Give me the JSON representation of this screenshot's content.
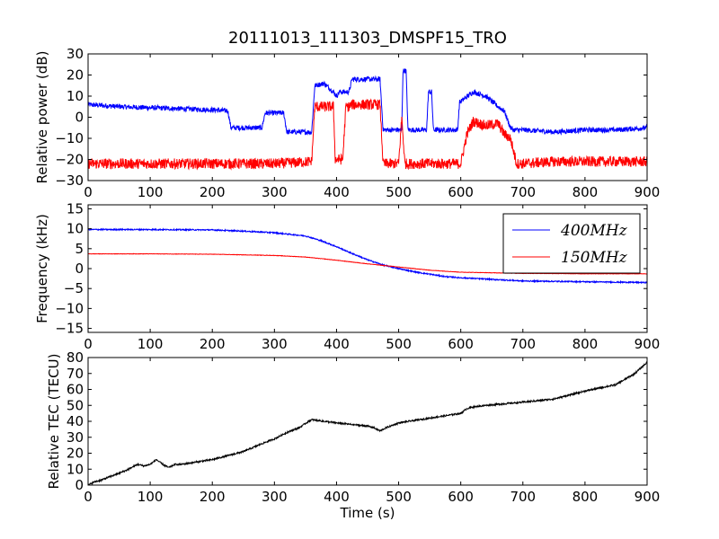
{
  "figure": {
    "title": "20111013_111303_DMSPF15_TRO",
    "xlabel": "Time (s)"
  },
  "chart_data": [
    {
      "type": "line",
      "ylabel": "Relative power (dB)",
      "xlim": [
        0,
        900
      ],
      "ylim": [
        -30,
        30
      ],
      "xticks": [
        0,
        100,
        200,
        300,
        400,
        500,
        600,
        700,
        800,
        900
      ],
      "yticks": [
        -30,
        -20,
        -10,
        0,
        10,
        20,
        30
      ],
      "grid": false,
      "series": [
        {
          "color": "#0000ff",
          "x": [
            0,
            50,
            100,
            150,
            200,
            225,
            230,
            280,
            285,
            300,
            315,
            320,
            360,
            365,
            380,
            395,
            400,
            405,
            420,
            425,
            470,
            475,
            505,
            507,
            512,
            515,
            545,
            548,
            553,
            556,
            595,
            598,
            620,
            640,
            660,
            670,
            680,
            685,
            700,
            750,
            800,
            850,
            900
          ],
          "values": [
            6,
            5,
            4.5,
            4,
            3.5,
            3,
            -5,
            -5,
            2,
            2,
            2,
            -7,
            -7,
            15,
            16,
            12,
            10,
            12,
            12,
            18,
            18,
            -6,
            -6,
            22,
            22,
            -6,
            -6,
            12,
            12,
            -6,
            -6,
            7,
            12,
            10,
            5,
            3,
            -5,
            -6,
            -6,
            -7,
            -6,
            -6,
            -5
          ],
          "noise": 1.2
        },
        {
          "color": "#ff0000",
          "x": [
            0,
            100,
            200,
            300,
            360,
            365,
            395,
            398,
            410,
            415,
            420,
            425,
            470,
            475,
            500,
            505,
            510,
            600,
            610,
            620,
            640,
            660,
            670,
            680,
            690,
            700,
            750,
            800,
            850,
            900
          ],
          "values": [
            -22,
            -22,
            -22,
            -22,
            -21,
            5,
            5,
            -20,
            -20,
            5,
            5,
            6,
            6,
            -22,
            -22,
            0,
            -22,
            -22,
            -8,
            -2,
            -4,
            -3,
            -8,
            -10,
            -22,
            -22,
            -21,
            -21,
            -21,
            -21
          ],
          "noise": 2.5
        }
      ]
    },
    {
      "type": "line",
      "ylabel": "Frequency (kHz)",
      "xlim": [
        0,
        900
      ],
      "ylim": [
        -16,
        16
      ],
      "xticks": [
        0,
        100,
        200,
        300,
        400,
        500,
        600,
        700,
        800,
        900
      ],
      "yticks": [
        -15,
        -10,
        -5,
        0,
        5,
        10,
        15
      ],
      "grid": false,
      "legend": "top-right",
      "series": [
        {
          "name": "400MHz",
          "color": "#0000ff",
          "x": [
            0,
            100,
            200,
            250,
            300,
            350,
            375,
            400,
            425,
            450,
            475,
            500,
            525,
            550,
            575,
            600,
            650,
            700,
            800,
            900
          ],
          "values": [
            9.8,
            9.8,
            9.7,
            9.4,
            9.0,
            8.2,
            7.0,
            5.5,
            3.8,
            2.2,
            0.9,
            0,
            -0.8,
            -1.4,
            -2.0,
            -2.3,
            -2.7,
            -3.1,
            -3.3,
            -3.5
          ],
          "noise": 0.15
        },
        {
          "name": "150MHz",
          "color": "#ff0000",
          "x": [
            0,
            100,
            200,
            300,
            350,
            400,
            450,
            500,
            550,
            600,
            700,
            800,
            900
          ],
          "values": [
            3.7,
            3.7,
            3.6,
            3.3,
            2.9,
            2.1,
            1.2,
            0.4,
            -0.4,
            -0.9,
            -1.2,
            -1.3,
            -1.3
          ],
          "noise": 0.05
        }
      ]
    },
    {
      "type": "line",
      "ylabel": "Relative TEC (TECU)",
      "xlim": [
        0,
        900
      ],
      "ylim": [
        0,
        80
      ],
      "xticks": [
        0,
        100,
        200,
        300,
        400,
        500,
        600,
        700,
        800,
        900
      ],
      "yticks": [
        0,
        10,
        20,
        30,
        40,
        50,
        60,
        70,
        80
      ],
      "grid": false,
      "series": [
        {
          "color": "#000000",
          "x": [
            0,
            10,
            20,
            40,
            60,
            80,
            90,
            100,
            110,
            120,
            130,
            140,
            150,
            200,
            250,
            280,
            300,
            320,
            340,
            355,
            360,
            380,
            400,
            450,
            460,
            470,
            480,
            500,
            550,
            600,
            610,
            620,
            640,
            700,
            750,
            800,
            850,
            880,
            900
          ],
          "values": [
            0,
            2,
            3,
            6,
            9,
            13,
            12,
            13,
            16,
            13,
            11,
            13,
            13,
            16,
            21,
            26,
            29,
            33,
            36,
            40,
            41,
            40,
            39,
            37,
            36,
            34,
            36,
            39,
            42,
            45,
            48,
            49,
            50,
            52,
            54,
            59,
            63,
            70,
            77
          ],
          "noise": 0.5
        }
      ]
    }
  ]
}
